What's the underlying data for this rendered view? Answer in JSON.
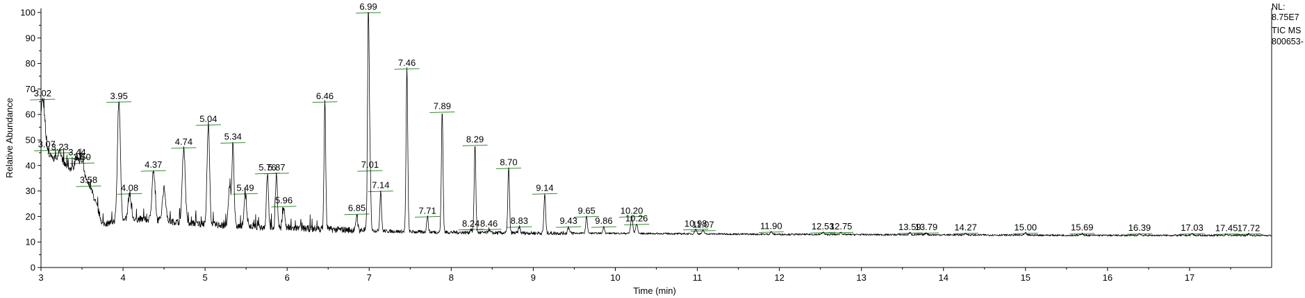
{
  "chart_data": {
    "type": "line",
    "xlabel": "Time (min)",
    "ylabel": "Relative Abundance",
    "xlim": [
      3.0,
      18.0
    ],
    "ylim": [
      0,
      100
    ],
    "x_ticks": [
      3,
      4,
      5,
      6,
      7,
      8,
      9,
      10,
      11,
      12,
      13,
      14,
      15,
      16,
      17
    ],
    "y_ticks": [
      0,
      10,
      20,
      30,
      40,
      50,
      60,
      70,
      80,
      90,
      100
    ],
    "grid": false,
    "colors": {
      "trace": "#000000",
      "integration": "#2e8b2e",
      "axis": "#000000"
    },
    "info": [
      "NL:",
      "8.75E7",
      "TIC  MS",
      "800653-"
    ],
    "baseline": [
      [
        3.0,
        45
      ],
      [
        3.2,
        42
      ],
      [
        3.4,
        38
      ],
      [
        3.6,
        32
      ],
      [
        3.7,
        22
      ],
      [
        3.75,
        17
      ],
      [
        3.9,
        18
      ],
      [
        4.2,
        19
      ],
      [
        4.6,
        18
      ],
      [
        5.0,
        17
      ],
      [
        5.5,
        16
      ],
      [
        6.0,
        15.5
      ],
      [
        6.5,
        15
      ],
      [
        7.0,
        14.5
      ],
      [
        7.5,
        14
      ],
      [
        8.0,
        13.8
      ],
      [
        8.5,
        13.6
      ],
      [
        9.0,
        13.5
      ],
      [
        10.0,
        13.4
      ],
      [
        11.0,
        13.2
      ],
      [
        12.0,
        13.0
      ],
      [
        14.0,
        12.8
      ],
      [
        16.0,
        12.6
      ],
      [
        18.0,
        12.6
      ]
    ],
    "peaks": [
      {
        "rt": 3.02,
        "label": "3.02",
        "height": 66,
        "width": 0.025
      },
      {
        "rt": 3.07,
        "label": "3.07",
        "height": 46,
        "width": 0.02
      },
      {
        "rt": 3.23,
        "label": "3.23",
        "height": 45,
        "width": 0.025
      },
      {
        "rt": 3.44,
        "label": "3.44",
        "height": 43,
        "width": 0.025
      },
      {
        "rt": 3.5,
        "label": "3.50",
        "height": 41,
        "width": 0.025
      },
      {
        "rt": 3.58,
        "label": "3.58",
        "height": 32,
        "width": 0.02
      },
      {
        "rt": 3.95,
        "label": "3.95",
        "height": 65,
        "width": 0.018
      },
      {
        "rt": 4.08,
        "label": "4.08",
        "height": 29,
        "width": 0.018
      },
      {
        "rt": 4.37,
        "label": "4.37",
        "height": 38,
        "width": 0.018
      },
      {
        "rt": 4.5,
        "label": "",
        "height": 31,
        "width": 0.02
      },
      {
        "rt": 4.74,
        "label": "4.74",
        "height": 47,
        "width": 0.018
      },
      {
        "rt": 5.04,
        "label": "5.04",
        "height": 56,
        "width": 0.015
      },
      {
        "rt": 5.3,
        "label": "",
        "height": 32,
        "width": 0.015
      },
      {
        "rt": 5.34,
        "label": "5.34",
        "height": 49,
        "width": 0.012
      },
      {
        "rt": 5.49,
        "label": "5.49",
        "height": 29,
        "width": 0.015
      },
      {
        "rt": 5.76,
        "label": "5.76",
        "height": 37,
        "width": 0.012
      },
      {
        "rt": 5.87,
        "label": "5.87",
        "height": 37,
        "width": 0.012
      },
      {
        "rt": 5.96,
        "label": "5.96",
        "height": 24,
        "width": 0.012
      },
      {
        "rt": 6.46,
        "label": "6.46",
        "height": 65,
        "width": 0.01
      },
      {
        "rt": 6.85,
        "label": "6.85",
        "height": 21,
        "width": 0.01
      },
      {
        "rt": 6.99,
        "label": "6.99",
        "height": 100,
        "width": 0.01
      },
      {
        "rt": 7.01,
        "label": "7.01",
        "height": 38,
        "width": 0.01
      },
      {
        "rt": 7.14,
        "label": "7.14",
        "height": 30,
        "width": 0.01
      },
      {
        "rt": 7.46,
        "label": "7.46",
        "height": 78,
        "width": 0.01
      },
      {
        "rt": 7.71,
        "label": "7.71",
        "height": 20,
        "width": 0.01
      },
      {
        "rt": 7.89,
        "label": "7.89",
        "height": 61,
        "width": 0.01
      },
      {
        "rt": 8.24,
        "label": "8.24",
        "height": 15,
        "width": 0.01
      },
      {
        "rt": 8.29,
        "label": "8.29",
        "height": 48,
        "width": 0.01
      },
      {
        "rt": 8.46,
        "label": "8.46",
        "height": 15,
        "width": 0.01
      },
      {
        "rt": 8.7,
        "label": "8.70",
        "height": 39,
        "width": 0.01
      },
      {
        "rt": 8.83,
        "label": "8.83",
        "height": 16,
        "width": 0.01
      },
      {
        "rt": 9.14,
        "label": "9.14",
        "height": 29,
        "width": 0.01
      },
      {
        "rt": 9.43,
        "label": "9.43",
        "height": 16,
        "width": 0.01
      },
      {
        "rt": 9.65,
        "label": "9.65",
        "height": 20,
        "width": 0.01
      },
      {
        "rt": 9.86,
        "label": "9.86",
        "height": 16,
        "width": 0.01
      },
      {
        "rt": 10.2,
        "label": "10.20",
        "height": 20,
        "width": 0.012
      },
      {
        "rt": 10.26,
        "label": "10.26",
        "height": 17,
        "width": 0.012
      },
      {
        "rt": 10.98,
        "label": "10.98",
        "height": 15,
        "width": 0.012
      },
      {
        "rt": 11.07,
        "label": "11.07",
        "height": 14.5,
        "width": 0.012
      },
      {
        "rt": 11.9,
        "label": "11.90",
        "height": 14,
        "width": 0.012
      },
      {
        "rt": 12.53,
        "label": "12.53",
        "height": 13.8,
        "width": 0.012
      },
      {
        "rt": 12.75,
        "label": "12.75",
        "height": 13.8,
        "width": 0.012
      },
      {
        "rt": 13.59,
        "label": "13.59",
        "height": 13.6,
        "width": 0.012
      },
      {
        "rt": 13.79,
        "label": "13.79",
        "height": 13.6,
        "width": 0.012
      },
      {
        "rt": 14.27,
        "label": "14.27",
        "height": 13.5,
        "width": 0.012
      },
      {
        "rt": 15.0,
        "label": "15.00",
        "height": 13.5,
        "width": 0.012
      },
      {
        "rt": 15.69,
        "label": "15.69",
        "height": 13.4,
        "width": 0.012
      },
      {
        "rt": 16.39,
        "label": "16.39",
        "height": 13.3,
        "width": 0.012
      },
      {
        "rt": 17.03,
        "label": "17.03",
        "height": 13.3,
        "width": 0.012
      },
      {
        "rt": 17.45,
        "label": "17.45",
        "height": 13.2,
        "width": 0.012
      },
      {
        "rt": 17.72,
        "label": "17.72",
        "height": 13.2,
        "width": 0.012
      }
    ]
  }
}
